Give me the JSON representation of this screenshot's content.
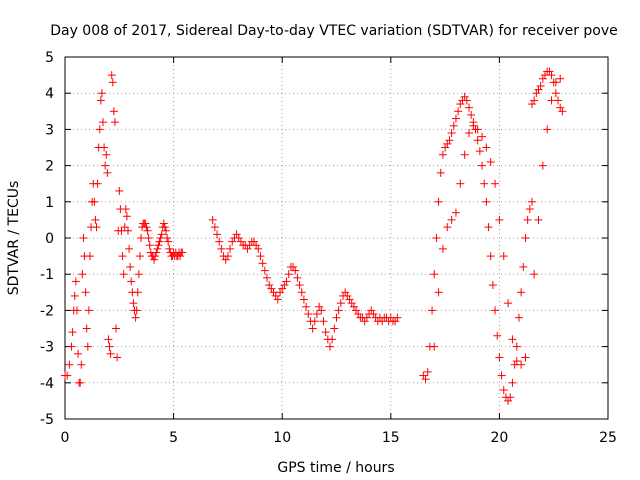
{
  "chart_data": {
    "type": "scatter",
    "title": "Day 008 of 2017, Sidereal Day-to-day VTEC variation (SDTVAR) for receiver pove",
    "xlabel": "GPS time / hours",
    "ylabel": "SDTVAR / TECUs",
    "xlim": [
      0,
      25
    ],
    "ylim": [
      -5,
      5
    ],
    "xticks": [
      "0",
      "5",
      "10",
      "15",
      "20",
      "25"
    ],
    "yticks": [
      "-5",
      "-4",
      "-3",
      "-2",
      "-1",
      "0",
      "1",
      "2",
      "3",
      "4",
      "5"
    ],
    "grid": true,
    "marker": "+",
    "color": "#ff0000",
    "series": [
      {
        "name": "SDTVAR",
        "x": [
          0.0,
          0.1,
          0.2,
          0.3,
          0.35,
          0.4,
          0.45,
          0.5,
          0.55,
          0.6,
          0.65,
          0.7,
          0.75,
          0.8,
          0.85,
          0.9,
          0.95,
          1.0,
          1.05,
          1.1,
          1.15,
          1.2,
          1.25,
          1.3,
          1.35,
          1.4,
          1.45,
          1.5,
          1.55,
          1.6,
          1.65,
          1.7,
          1.75,
          1.8,
          1.85,
          1.9,
          1.95,
          2.0,
          2.05,
          2.1,
          2.15,
          2.2,
          2.25,
          2.3,
          2.35,
          2.4,
          2.45,
          2.5,
          2.55,
          2.6,
          2.65,
          2.7,
          2.75,
          2.8,
          2.85,
          2.9,
          2.95,
          3.0,
          3.05,
          3.1,
          3.15,
          3.2,
          3.25,
          3.3,
          3.35,
          3.4,
          3.45,
          3.5,
          3.55,
          3.6,
          3.65,
          3.7,
          3.75,
          3.8,
          3.85,
          3.9,
          3.95,
          4.0,
          4.05,
          4.1,
          4.15,
          4.2,
          4.25,
          4.3,
          4.35,
          4.4,
          4.45,
          4.5,
          4.55,
          4.6,
          4.65,
          4.7,
          4.75,
          4.8,
          4.85,
          4.9,
          4.95,
          5.0,
          5.05,
          5.1,
          5.15,
          5.2,
          5.25,
          5.3,
          5.35,
          5.4,
          6.8,
          6.9,
          7.0,
          7.1,
          7.2,
          7.3,
          7.4,
          7.5,
          7.6,
          7.7,
          7.8,
          7.9,
          8.0,
          8.1,
          8.2,
          8.3,
          8.4,
          8.5,
          8.6,
          8.7,
          8.8,
          8.9,
          9.0,
          9.1,
          9.2,
          9.3,
          9.4,
          9.5,
          9.6,
          9.7,
          9.8,
          9.9,
          10.0,
          10.1,
          10.2,
          10.3,
          10.4,
          10.5,
          10.6,
          10.7,
          10.8,
          10.9,
          11.0,
          11.1,
          11.2,
          11.3,
          11.4,
          11.5,
          11.6,
          11.7,
          11.8,
          11.9,
          12.0,
          12.1,
          12.2,
          12.3,
          12.4,
          12.5,
          12.6,
          12.7,
          12.8,
          12.9,
          13.0,
          13.1,
          13.2,
          13.3,
          13.4,
          13.5,
          13.6,
          13.7,
          13.8,
          13.9,
          14.0,
          14.1,
          14.2,
          14.3,
          14.4,
          14.5,
          14.6,
          14.7,
          14.8,
          14.9,
          15.0,
          15.1,
          15.2,
          15.3,
          16.5,
          16.6,
          16.7,
          16.8,
          16.9,
          17.0,
          17.1,
          17.2,
          17.3,
          17.4,
          17.5,
          17.6,
          17.7,
          17.8,
          17.9,
          18.0,
          18.1,
          18.2,
          18.3,
          18.4,
          18.5,
          18.6,
          18.7,
          18.8,
          18.9,
          19.0,
          19.1,
          19.2,
          19.3,
          19.4,
          19.5,
          19.6,
          19.7,
          19.8,
          19.9,
          20.0,
          20.1,
          20.2,
          20.3,
          20.4,
          20.5,
          20.6,
          20.7,
          20.8,
          20.9,
          21.0,
          21.1,
          21.2,
          21.3,
          21.4,
          21.5,
          17.0,
          17.2,
          17.4,
          17.6,
          17.8,
          18.0,
          18.2,
          18.4,
          18.6,
          18.8,
          19.0,
          19.2,
          19.4,
          19.6,
          19.8,
          20.0,
          20.2,
          20.4,
          20.6,
          20.8,
          21.0,
          21.2,
          21.5,
          21.6,
          21.7,
          21.8,
          21.9,
          22.0,
          22.1,
          22.2,
          22.3,
          22.4,
          22.5,
          22.6,
          22.7,
          22.8,
          22.9,
          21.6,
          21.8,
          22.0,
          22.2,
          22.4,
          22.6,
          22.8
        ],
        "y": [
          -3.8,
          -3.8,
          -3.5,
          -3.0,
          -2.6,
          -2.0,
          -1.6,
          -1.2,
          -2.0,
          -3.2,
          -4.0,
          -4.0,
          -3.5,
          -1.0,
          0.0,
          -0.5,
          -1.5,
          -2.5,
          -3.0,
          -2.0,
          -0.5,
          0.3,
          1.0,
          1.5,
          1.0,
          0.5,
          0.3,
          1.5,
          2.5,
          3.0,
          3.8,
          4.0,
          3.2,
          2.5,
          2.0,
          2.3,
          1.8,
          -2.8,
          -3.0,
          -3.2,
          4.5,
          4.3,
          3.5,
          3.2,
          -2.5,
          -3.3,
          0.2,
          1.3,
          0.8,
          0.2,
          -0.5,
          -1.0,
          0.3,
          0.8,
          0.6,
          0.2,
          -0.3,
          -0.8,
          -1.2,
          -1.5,
          -1.8,
          -2.0,
          -2.2,
          -2.0,
          -1.5,
          -1.0,
          -0.5,
          0.0,
          0.3,
          0.4,
          0.4,
          0.4,
          0.3,
          0.2,
          0.0,
          -0.2,
          -0.4,
          -0.5,
          -0.5,
          -0.6,
          -0.5,
          -0.4,
          -0.3,
          -0.2,
          -0.1,
          0.0,
          0.1,
          0.3,
          0.4,
          0.3,
          0.2,
          0.0,
          -0.1,
          -0.3,
          -0.4,
          -0.5,
          -0.5,
          -0.4,
          -0.5,
          -0.4,
          -0.5,
          -0.5,
          -0.4,
          -0.5,
          -0.4,
          -0.4,
          0.5,
          0.3,
          0.1,
          -0.1,
          -0.3,
          -0.5,
          -0.6,
          -0.5,
          -0.3,
          -0.1,
          0.0,
          0.1,
          0.0,
          -0.1,
          -0.2,
          -0.2,
          -0.3,
          -0.2,
          -0.1,
          -0.1,
          -0.2,
          -0.3,
          -0.5,
          -0.7,
          -0.9,
          -1.1,
          -1.3,
          -1.4,
          -1.5,
          -1.6,
          -1.7,
          -1.5,
          -1.4,
          -1.3,
          -1.2,
          -1.0,
          -0.8,
          -0.8,
          -0.9,
          -1.1,
          -1.3,
          -1.5,
          -1.7,
          -1.9,
          -2.1,
          -2.3,
          -2.5,
          -2.3,
          -2.1,
          -1.9,
          -2.0,
          -2.3,
          -2.6,
          -2.8,
          -3.0,
          -2.8,
          -2.5,
          -2.2,
          -2.0,
          -1.8,
          -1.6,
          -1.5,
          -1.6,
          -1.7,
          -1.8,
          -1.9,
          -2.0,
          -2.1,
          -2.2,
          -2.2,
          -2.3,
          -2.2,
          -2.1,
          -2.0,
          -2.1,
          -2.2,
          -2.3,
          -2.2,
          -2.3,
          -2.2,
          -2.2,
          -2.3,
          -2.2,
          -2.3,
          -2.3,
          -2.2,
          -3.8,
          -3.9,
          -3.7,
          -3.0,
          -2.0,
          -1.0,
          0.0,
          1.0,
          1.8,
          2.3,
          2.5,
          2.6,
          2.7,
          2.9,
          3.1,
          3.3,
          3.5,
          3.7,
          3.8,
          3.9,
          3.8,
          3.6,
          3.4,
          3.2,
          3.0,
          2.7,
          2.4,
          2.0,
          1.5,
          1.0,
          0.3,
          -0.5,
          -1.3,
          -2.0,
          -2.7,
          -3.3,
          -3.8,
          -4.2,
          -4.4,
          -4.5,
          -4.4,
          -4.0,
          -3.5,
          -3.0,
          -2.2,
          -1.5,
          -0.8,
          0.0,
          0.5,
          0.8,
          1.0,
          -3.0,
          -1.5,
          -0.3,
          0.3,
          0.5,
          0.7,
          1.5,
          2.3,
          2.9,
          3.1,
          3.0,
          2.8,
          2.5,
          2.1,
          1.5,
          0.5,
          -0.5,
          -1.8,
          -2.8,
          -3.4,
          -3.5,
          -3.3,
          3.7,
          3.8,
          4.0,
          4.1,
          4.2,
          4.4,
          4.5,
          4.6,
          4.6,
          4.5,
          4.3,
          4.0,
          3.8,
          3.6,
          3.5,
          -1.0,
          0.5,
          2.0,
          3.0,
          3.8,
          4.3,
          4.4
        ]
      }
    ]
  }
}
